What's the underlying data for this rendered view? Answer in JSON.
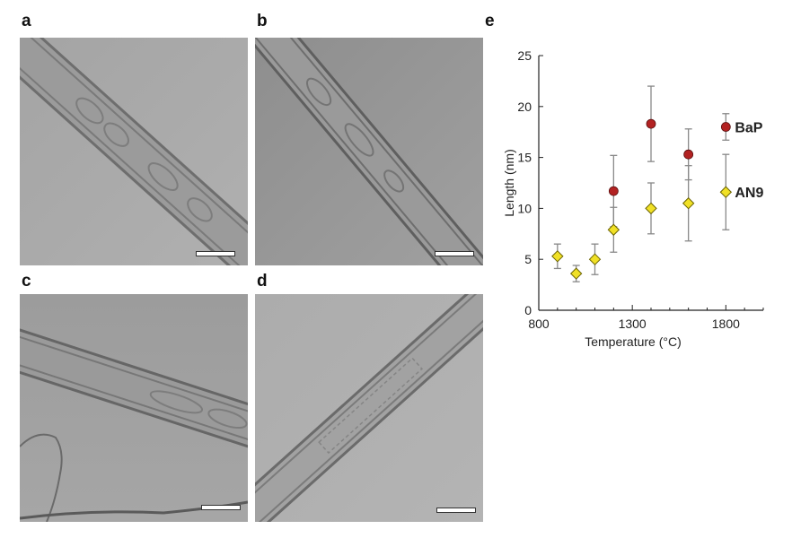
{
  "figure": {
    "panel_labels": [
      "a",
      "b",
      "c",
      "d",
      "e"
    ]
  },
  "colors": {
    "bap_marker": "#b22222",
    "an9_marker": "#f0e026",
    "error_bar": "#888888",
    "tem_background": "#a9a9a9"
  },
  "chart_data": {
    "type": "scatter",
    "xlabel": "Temperature (°C)",
    "ylabel": "Length (nm)",
    "xlim": [
      800,
      2000
    ],
    "ylim": [
      0,
      25
    ],
    "xticks": [
      "800",
      "1300",
      "1800"
    ],
    "yticks": [
      "0",
      "5",
      "10",
      "15",
      "20",
      "25"
    ],
    "grid": false,
    "legend": "inline-right",
    "series": [
      {
        "name": "BaP",
        "marker": "circle",
        "color": "#b22222",
        "points": [
          {
            "x": 1200,
            "y": 11.7,
            "err": 3.5
          },
          {
            "x": 1400,
            "y": 18.3,
            "err": 3.7
          },
          {
            "x": 1600,
            "y": 15.3,
            "err": 2.5
          },
          {
            "x": 1800,
            "y": 18.0,
            "err": 1.3
          }
        ]
      },
      {
        "name": "AN9",
        "marker": "diamond",
        "color": "#f0e026",
        "points": [
          {
            "x": 900,
            "y": 5.3,
            "err": 1.2
          },
          {
            "x": 1000,
            "y": 3.6,
            "err": 0.8
          },
          {
            "x": 1100,
            "y": 5.0,
            "err": 1.5
          },
          {
            "x": 1200,
            "y": 7.9,
            "err": 2.2
          },
          {
            "x": 1400,
            "y": 10.0,
            "err": 2.5
          },
          {
            "x": 1600,
            "y": 10.5,
            "err": 3.7
          },
          {
            "x": 1800,
            "y": 11.6,
            "err": 3.7
          }
        ]
      }
    ]
  }
}
